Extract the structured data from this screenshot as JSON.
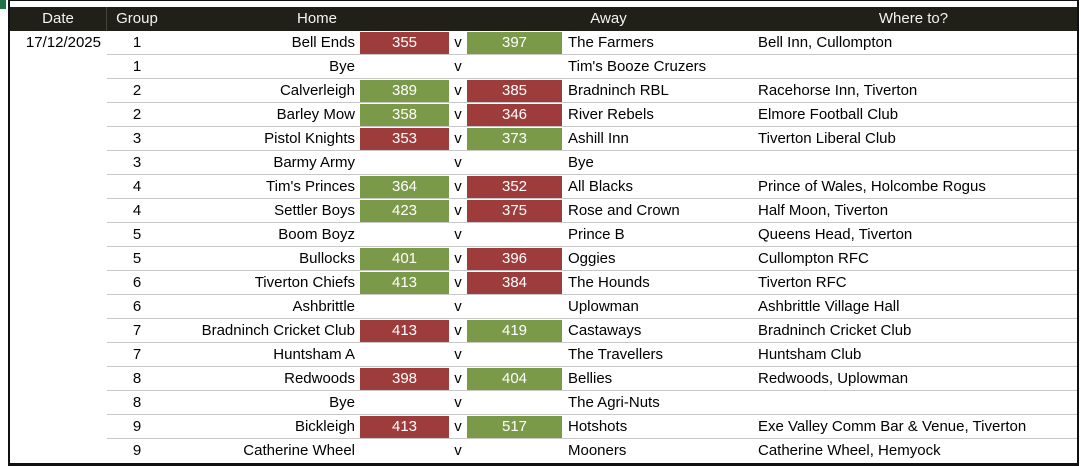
{
  "colors": {
    "win": "#7b9a49",
    "loss": "#9d3c3b",
    "header_bg": "#201f18",
    "header_text": "#f4f3ee",
    "corner_accent": "#217346"
  },
  "table": {
    "headers": {
      "date": "Date",
      "group": "Group",
      "home": "Home",
      "away": "Away",
      "where": "Where to?"
    },
    "versus_label": "v",
    "rows": [
      {
        "date": "17/12/2025",
        "group": "1",
        "home": "Bell Ends",
        "home_score": "355",
        "home_result": "loss",
        "away_score": "397",
        "away_result": "win",
        "away": "The Farmers",
        "where": "Bell Inn, Cullompton"
      },
      {
        "date": "",
        "group": "1",
        "home": "Bye",
        "home_score": "",
        "home_result": "",
        "away_score": "",
        "away_result": "",
        "away": "Tim's Booze Cruzers",
        "where": ""
      },
      {
        "date": "",
        "group": "2",
        "home": "Calverleigh",
        "home_score": "389",
        "home_result": "win",
        "away_score": "385",
        "away_result": "loss",
        "away": "Bradninch RBL",
        "where": "Racehorse Inn, Tiverton"
      },
      {
        "date": "",
        "group": "2",
        "home": "Barley Mow",
        "home_score": "358",
        "home_result": "win",
        "away_score": "346",
        "away_result": "loss",
        "away": "River Rebels",
        "where": "Elmore Football Club"
      },
      {
        "date": "",
        "group": "3",
        "home": "Pistol Knights",
        "home_score": "353",
        "home_result": "loss",
        "away_score": "373",
        "away_result": "win",
        "away": "Ashill Inn",
        "where": "Tiverton Liberal Club"
      },
      {
        "date": "",
        "group": "3",
        "home": "Barmy Army",
        "home_score": "",
        "home_result": "",
        "away_score": "",
        "away_result": "",
        "away": "Bye",
        "where": ""
      },
      {
        "date": "",
        "group": "4",
        "home": "Tim's Princes",
        "home_score": "364",
        "home_result": "win",
        "away_score": "352",
        "away_result": "loss",
        "away": "All Blacks",
        "where": "Prince of Wales, Holcombe Rogus"
      },
      {
        "date": "",
        "group": "4",
        "home": "Settler Boys",
        "home_score": "423",
        "home_result": "win",
        "away_score": "375",
        "away_result": "loss",
        "away": "Rose and Crown",
        "where": "Half Moon, Tiverton"
      },
      {
        "date": "",
        "group": "5",
        "home": "Boom Boyz",
        "home_score": "",
        "home_result": "",
        "away_score": "",
        "away_result": "",
        "away": "Prince B",
        "where": "Queens Head, Tiverton"
      },
      {
        "date": "",
        "group": "5",
        "home": "Bullocks",
        "home_score": "401",
        "home_result": "win",
        "away_score": "396",
        "away_result": "loss",
        "away": "Oggies",
        "where": "Cullompton RFC"
      },
      {
        "date": "",
        "group": "6",
        "home": "Tiverton Chiefs",
        "home_score": "413",
        "home_result": "win",
        "away_score": "384",
        "away_result": "loss",
        "away": "The Hounds",
        "where": "Tiverton RFC"
      },
      {
        "date": "",
        "group": "6",
        "home": "Ashbrittle",
        "home_score": "",
        "home_result": "",
        "away_score": "",
        "away_result": "",
        "away": "Uplowman",
        "where": "Ashbrittle Village Hall"
      },
      {
        "date": "",
        "group": "7",
        "home": "Bradninch Cricket Club",
        "home_score": "413",
        "home_result": "loss",
        "away_score": "419",
        "away_result": "win",
        "away": "Castaways",
        "where": "Bradninch Cricket Club"
      },
      {
        "date": "",
        "group": "7",
        "home": "Huntsham A",
        "home_score": "",
        "home_result": "",
        "away_score": "",
        "away_result": "",
        "away": "The Travellers",
        "where": "Huntsham Club"
      },
      {
        "date": "",
        "group": "8",
        "home": "Redwoods",
        "home_score": "398",
        "home_result": "loss",
        "away_score": "404",
        "away_result": "win",
        "away": "Bellies",
        "where": "Redwoods, Uplowman"
      },
      {
        "date": "",
        "group": "8",
        "home": "Bye",
        "home_score": "",
        "home_result": "",
        "away_score": "",
        "away_result": "",
        "away": "The Agri-Nuts",
        "where": ""
      },
      {
        "date": "",
        "group": "9",
        "home": "Bickleigh",
        "home_score": "413",
        "home_result": "loss",
        "away_score": "517",
        "away_result": "win",
        "away": "Hotshots",
        "where": "Exe Valley Comm Bar & Venue, Tiverton"
      },
      {
        "date": "",
        "group": "9",
        "home": "Catherine Wheel",
        "home_score": "",
        "home_result": "",
        "away_score": "",
        "away_result": "",
        "away": "Mooners",
        "where": "Catherine Wheel, Hemyock"
      }
    ]
  }
}
